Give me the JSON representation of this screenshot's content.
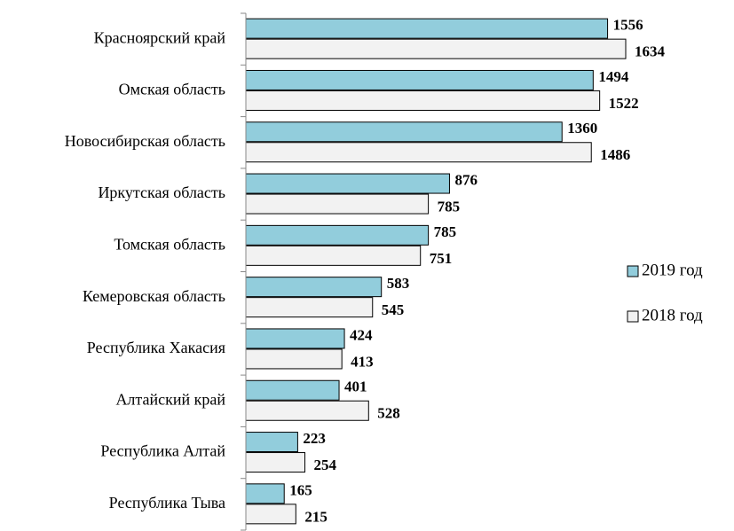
{
  "chart_data": {
    "type": "hbar",
    "categories": [
      "Красноярский край",
      "Омская область",
      "Новосибирская область",
      "Иркутская область",
      "Томская область",
      "Кемеровская область",
      "Республика Хакасия",
      "Алтайский край",
      "Республика Алтай",
      "Республика Тыва"
    ],
    "series": [
      {
        "name": "2019 год",
        "color": "#92cddc",
        "values": [
          1556,
          1494,
          1360,
          876,
          785,
          583,
          424,
          401,
          223,
          165
        ]
      },
      {
        "name": "2018 год",
        "color": "#f2f2f2",
        "values": [
          1634,
          1522,
          1486,
          785,
          751,
          545,
          413,
          528,
          254,
          215
        ]
      }
    ],
    "legend": "right"
  }
}
